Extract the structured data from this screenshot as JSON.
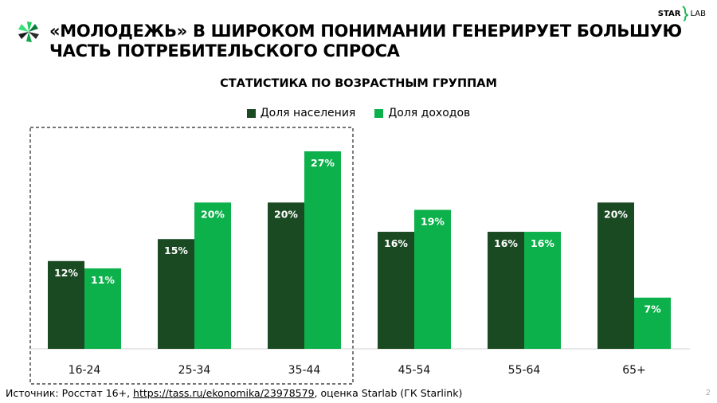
{
  "title": [
    "«МОЛОДЕЖЬ» В ШИРОКОМ ПОНИМАНИИ ГЕНЕРИРУЕТ БОЛЬШУЮ",
    "ЧАСТЬ ПОТРЕБИТЕЛЬСКОГО СПРОСА"
  ],
  "brand": {
    "left": "STAR",
    "right": "LAB"
  },
  "footer": {
    "prefix": "Источник: Росстат 16+, ",
    "link": "https://tass.ru/ekonomika/23978579",
    "suffix": ", оценка Starlab (ГК Starlink)"
  },
  "page_number": "2",
  "colors": {
    "population": "#1a4a22",
    "income": "#0db14b"
  },
  "chart_data": {
    "type": "bar",
    "title": "СТАТИСТИКА ПО ВОЗРАСТНЫМ ГРУППАМ",
    "categories": [
      "16-24",
      "25-34",
      "35-44",
      "45-54",
      "55-64",
      "65+"
    ],
    "series": [
      {
        "name": "Доля населения",
        "values": [
          12,
          15,
          20,
          16,
          16,
          20
        ]
      },
      {
        "name": "Доля доходов",
        "values": [
          11,
          20,
          27,
          19,
          16,
          7
        ]
      }
    ],
    "value_suffix": "%",
    "ylim": [
      0,
      27
    ],
    "highlight": [
      "16-24",
      "25-34",
      "35-44"
    ],
    "legend": "top-center"
  }
}
